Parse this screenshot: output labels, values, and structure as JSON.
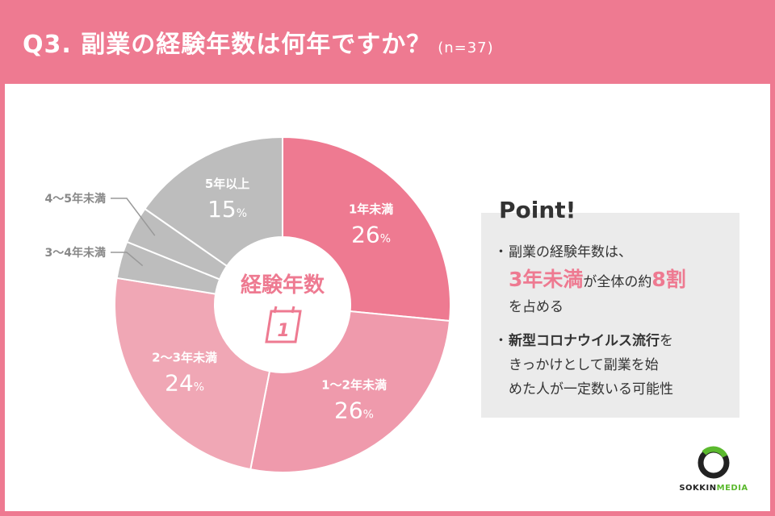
{
  "header": {
    "title": "Q3. 副業の経験年数は何年ですか？",
    "note": "(n=37)"
  },
  "chart_data": {
    "type": "pie",
    "style": "donut",
    "center_label": "経験年数",
    "center_icon": "calendar-icon",
    "center_icon_text": "1",
    "slices": [
      {
        "label": "1年未満",
        "value": 26,
        "value_label": "26",
        "unit": "%",
        "color": "#ee7a91"
      },
      {
        "label": "1〜2年未満",
        "value": 26,
        "value_label": "26",
        "unit": "%",
        "color": "#ef9aac"
      },
      {
        "label": "2〜3年未満",
        "value": 24,
        "value_label": "24",
        "unit": "%",
        "color": "#f0a7b5"
      },
      {
        "label": "3〜4年未満",
        "value": 3.5,
        "value_label": "",
        "unit": "",
        "color": "#bdbdbd"
      },
      {
        "label": "4〜5年未満",
        "value": 3.5,
        "value_label": "",
        "unit": "",
        "color": "#bdbdbd"
      },
      {
        "label": "5年以上",
        "value": 15,
        "value_label": "15",
        "unit": "%",
        "color": "#bdbdbd"
      }
    ]
  },
  "point": {
    "label": "Point!",
    "bullet": "・",
    "item1": {
      "line1": "副業の経験年数は、",
      "highlight": "3年未満",
      "mid": "が全体の約",
      "highlight2": "8割",
      "line3": "を占める"
    },
    "item2": {
      "bold": "新型コロナウイルス流行",
      "rest1": "を",
      "line2": "きっかけとして副業を始",
      "line3": "めた人が一定数いる可能性"
    }
  },
  "logo": {
    "text_a": "SOKKIN",
    "text_b": "MEDIA",
    "color_a": "#222222",
    "color_b": "#5bb92e"
  }
}
